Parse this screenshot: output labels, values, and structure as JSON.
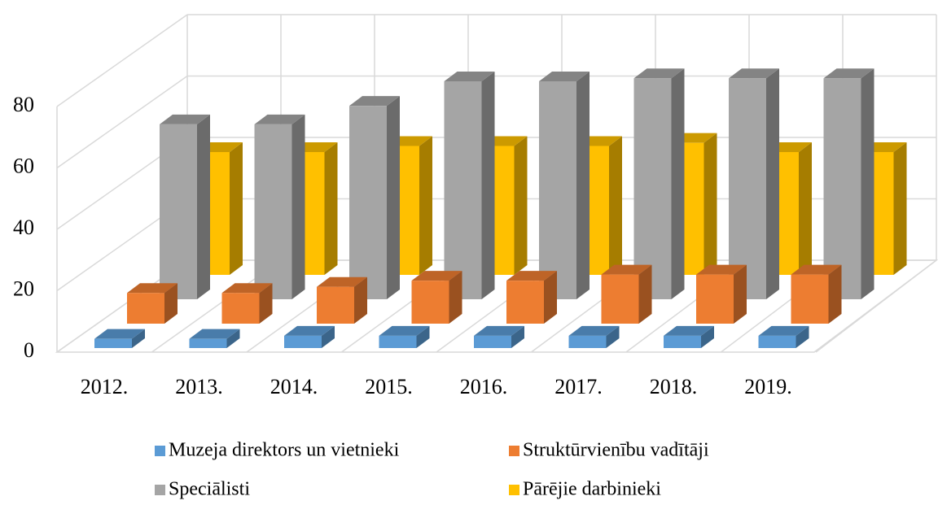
{
  "chart_data": {
    "type": "bar3d",
    "categories": [
      "2012.",
      "2013.",
      "2014.",
      "2015.",
      "2016.",
      "2017.",
      "2018.",
      "2019."
    ],
    "series": [
      {
        "name": "Muzeja direktors un vietnieki",
        "color": "#5b9bd5",
        "values": [
          3,
          3,
          4,
          4,
          4,
          4,
          4,
          4
        ]
      },
      {
        "name": "Struktūrvienību vadītāji",
        "color": "#ed7d31",
        "values": [
          10,
          10,
          12,
          14,
          14,
          16,
          16,
          16
        ]
      },
      {
        "name": "Speciālisti",
        "color": "#a5a5a5",
        "values": [
          57,
          57,
          63,
          71,
          71,
          72,
          72,
          72
        ]
      },
      {
        "name": "Pārējie darbinieki",
        "color": "#ffc000",
        "values": [
          40,
          40,
          42,
          42,
          42,
          43,
          40,
          40
        ]
      }
    ],
    "ylim": [
      0,
      80
    ],
    "yticks": [
      0,
      20,
      40,
      60,
      80
    ],
    "grid": true,
    "legend": "bottom"
  }
}
